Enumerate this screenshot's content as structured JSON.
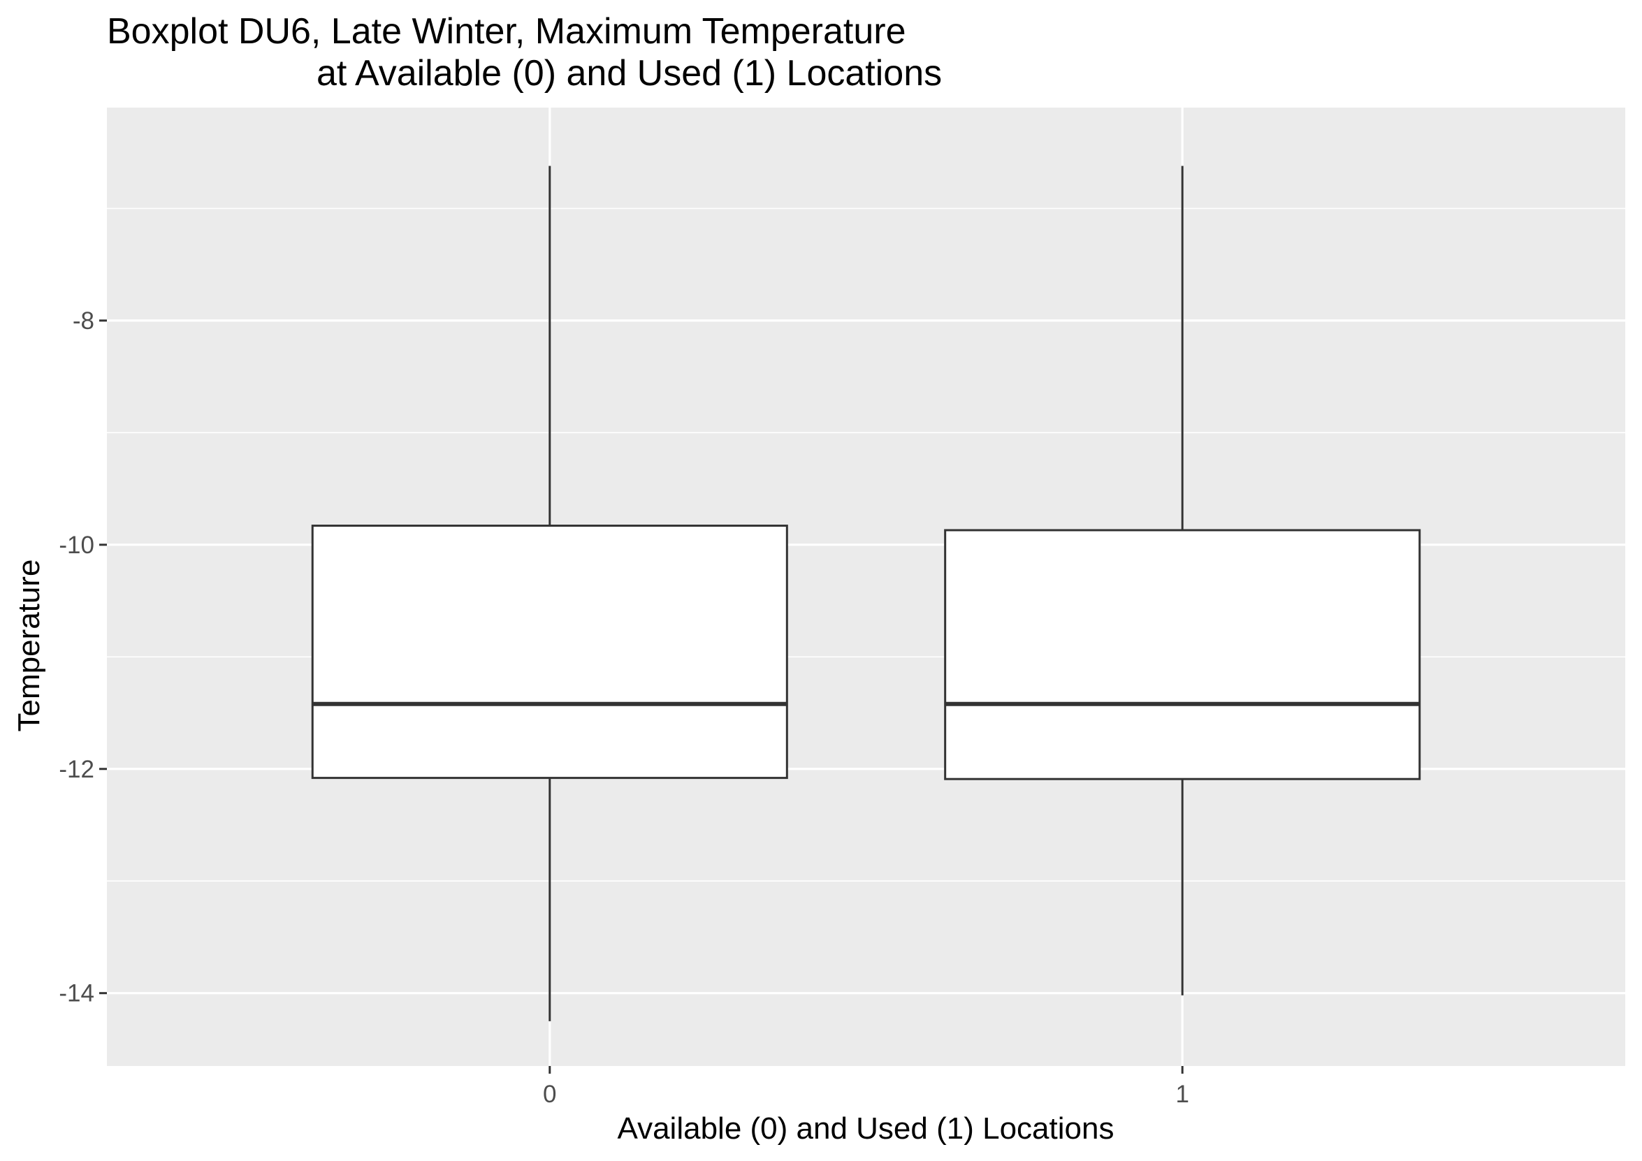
{
  "chart_data": {
    "type": "boxplot",
    "title": "Boxplot DU6, Late Winter, Maximum Temperature",
    "subtitle": "at Available (0) and Used (1) Locations",
    "xlabel": "Available (0) and Used (1) Locations",
    "ylabel": "Temperature",
    "ylim": [
      -14.65,
      -6.1
    ],
    "y_ticks": [
      {
        "value": -8,
        "label": "-8"
      },
      {
        "value": -10,
        "label": "-10"
      },
      {
        "value": -12,
        "label": "-12"
      },
      {
        "value": -14,
        "label": "-14"
      }
    ],
    "y_minor_gridlines": [
      -7,
      -9,
      -11,
      -13
    ],
    "categories": [
      "0",
      "1"
    ],
    "boxes": [
      {
        "category": "0",
        "whisker_low": -14.25,
        "q1": -12.08,
        "median": -11.42,
        "q3": -9.83,
        "whisker_high": -6.62
      },
      {
        "category": "1",
        "whisker_low": -14.02,
        "q1": -12.09,
        "median": -11.42,
        "q3": -9.87,
        "whisker_high": -6.62
      }
    ],
    "grid": true,
    "colors": {
      "panel_background": "#ebebeb",
      "grid_line": "#ffffff",
      "box_fill": "#ffffff",
      "box_stroke": "#333333",
      "tick_mark": "#333333",
      "tick_label": "#4d4d4d"
    }
  }
}
